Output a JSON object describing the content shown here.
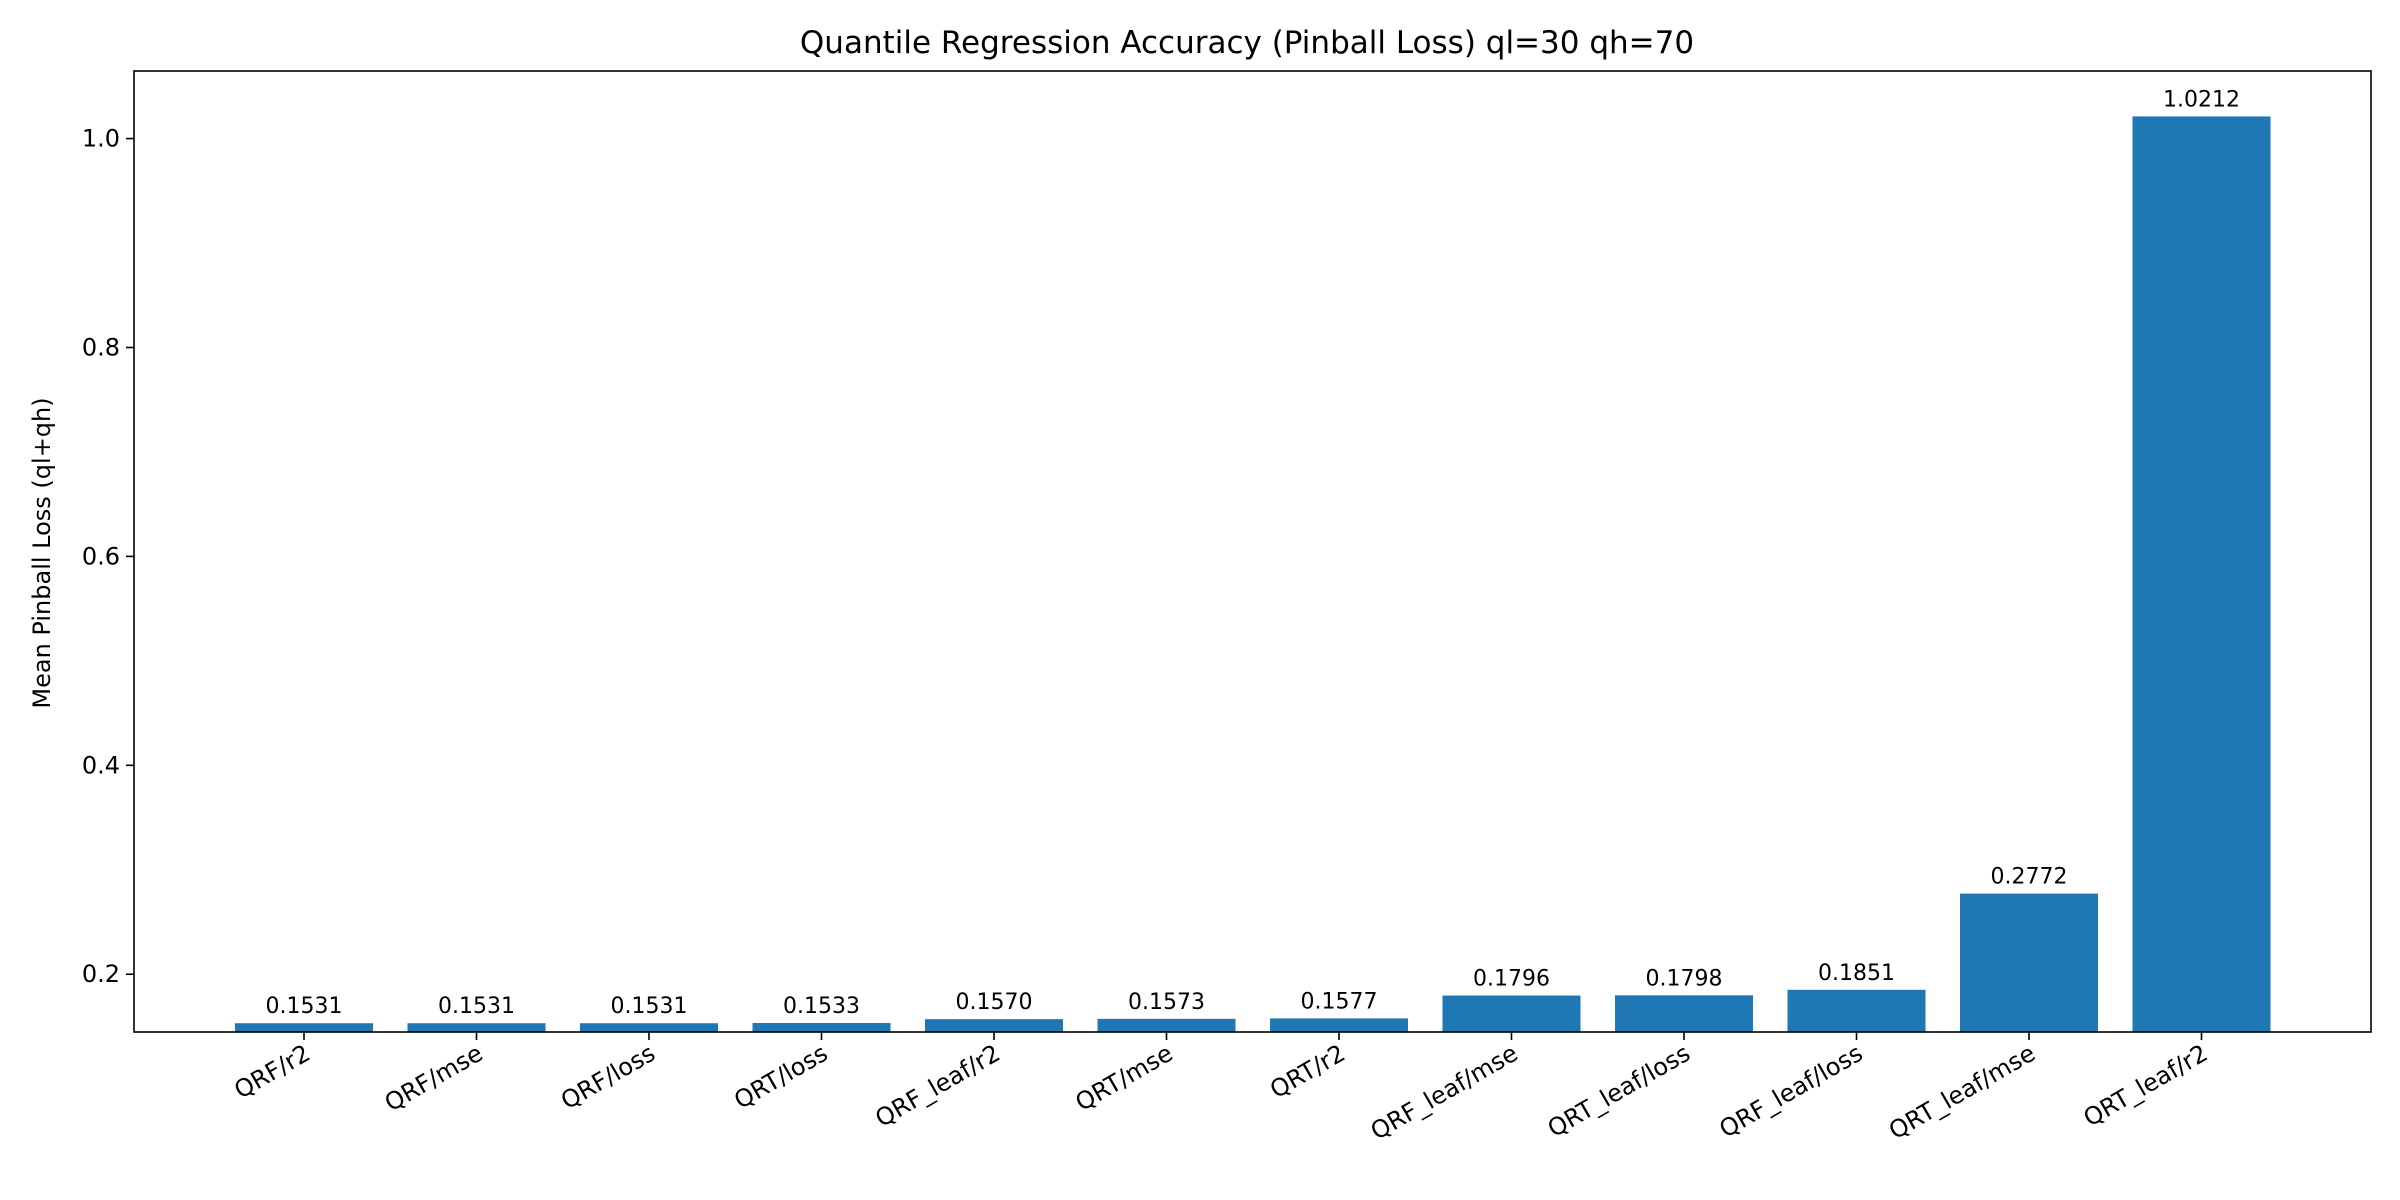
{
  "chart_data": {
    "type": "bar",
    "title": "Quantile Regression Accuracy (Pinball Loss) ql=30 qh=70",
    "xlabel": "",
    "ylabel": "Mean Pinball Loss (ql+qh)",
    "categories": [
      "QRF/r2",
      "QRF/mse",
      "QRF/loss",
      "QRT/loss",
      "QRF_leaf/r2",
      "QRT/mse",
      "QRT/r2",
      "QRF_leaf/mse",
      "QRT_leaf/loss",
      "QRF_leaf/loss",
      "QRT_leaf/mse",
      "QRT_leaf/r2"
    ],
    "values": [
      0.1531,
      0.1531,
      0.1531,
      0.1533,
      0.157,
      0.1573,
      0.1577,
      0.1796,
      0.1798,
      0.1851,
      0.2772,
      1.0212
    ],
    "value_labels": [
      "0.1531",
      "0.1531",
      "0.1531",
      "0.1533",
      "0.1570",
      "0.1573",
      "0.1577",
      "0.1796",
      "0.1798",
      "0.1851",
      "0.2772",
      "1.0212"
    ],
    "ylim": [
      0.1447,
      1.0647
    ],
    "yticks": [
      0.2,
      0.4,
      0.6,
      0.8,
      1.0
    ],
    "ytick_labels": [
      "0.2",
      "0.4",
      "0.6",
      "0.8",
      "1.0"
    ],
    "bar_color": "#1f77b4",
    "grid": false,
    "legend": "none"
  }
}
